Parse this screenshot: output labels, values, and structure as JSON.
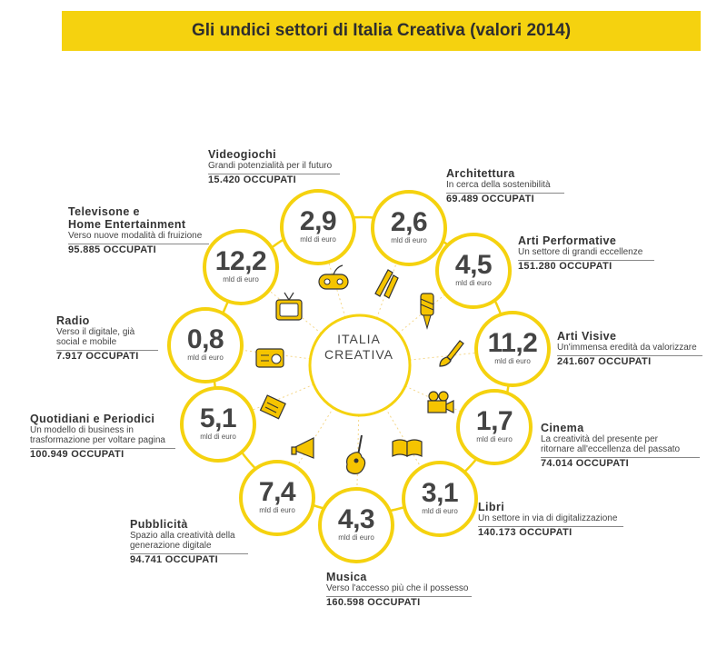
{
  "title": "Gli undici settori di Italia Creativa (valori 2014)",
  "center": {
    "line1": "ITALIA",
    "line2": "CREATIVA"
  },
  "unit": "mld di euro",
  "accent_color": "#f5d20f",
  "sectors": [
    {
      "id": "videogiochi",
      "value": "2,9",
      "unit": "mld di euro",
      "name": "Videogiochi",
      "desc": [
        "Grandi potenzialità per il futuro"
      ],
      "jobs": "15.420 OCCUPATI",
      "icon": "gamepad-icon"
    },
    {
      "id": "architettura",
      "value": "2,6",
      "unit": "mld di euro",
      "name": "Architettura",
      "desc": [
        "In cerca della sostenibilità"
      ],
      "jobs": "69.489 OCCUPATI",
      "icon": "pencil-icon"
    },
    {
      "id": "arti-performative",
      "value": "4,5",
      "unit": "mld di euro",
      "name": "Arti Performative",
      "desc": [
        "Un settore di grandi eccellenze"
      ],
      "jobs": "151.280 OCCUPATI",
      "icon": "ballet-shoes-icon"
    },
    {
      "id": "arti-visive",
      "value": "11,2",
      "unit": "mld di euro",
      "name": "Arti Visive",
      "desc": [
        "Un'immensa eredità da valorizzare"
      ],
      "jobs": "241.607 OCCUPATI",
      "icon": "paintbrush-icon"
    },
    {
      "id": "cinema",
      "value": "1,7",
      "unit": "mld di euro",
      "name": "Cinema",
      "desc": [
        "La creatività del presente per",
        "ritornare all'eccellenza del passato"
      ],
      "jobs": "74.014 OCCUPATI",
      "icon": "film-camera-icon"
    },
    {
      "id": "libri",
      "value": "3,1",
      "unit": "mld di euro",
      "name": "Libri",
      "desc": [
        "Un settore in via di digitalizzazione"
      ],
      "jobs": "140.173 OCCUPATI",
      "icon": "book-icon"
    },
    {
      "id": "musica",
      "value": "4,3",
      "unit": "mld di euro",
      "name": "Musica",
      "desc": [
        "Verso l'accesso più che il possesso"
      ],
      "jobs": "160.598 OCCUPATI",
      "icon": "guitar-icon"
    },
    {
      "id": "pubblicita",
      "value": "7,4",
      "unit": "mld di euro",
      "name": "Pubblicità",
      "desc": [
        "Spazio alla creatività della",
        "generazione digitale"
      ],
      "jobs": "94.741 OCCUPATI",
      "icon": "megaphone-icon"
    },
    {
      "id": "quotidiani",
      "value": "5,1",
      "unit": "mld di euro",
      "name": "Quotidiani e Periodici",
      "desc": [
        "Un modello di business in",
        "trasformazione per voltare pagina"
      ],
      "jobs": "100.949 OCCUPATI",
      "icon": "newspaper-icon"
    },
    {
      "id": "radio",
      "value": "0,8",
      "unit": "mld di euro",
      "name": "Radio",
      "desc": [
        "Verso il digitale, già",
        "social e mobile"
      ],
      "jobs": "7.917 OCCUPATI",
      "icon": "radio-icon"
    },
    {
      "id": "televisione",
      "value": "12,2",
      "unit": "mld di euro",
      "name": "Televisone e Home Entertainment",
      "nameLines": [
        "Televisone e",
        "Home Entertainment"
      ],
      "desc": [
        "Verso nuove modalità di fruizione"
      ],
      "jobs": "95.885 OCCUPATI",
      "icon": "tv-icon"
    }
  ]
}
